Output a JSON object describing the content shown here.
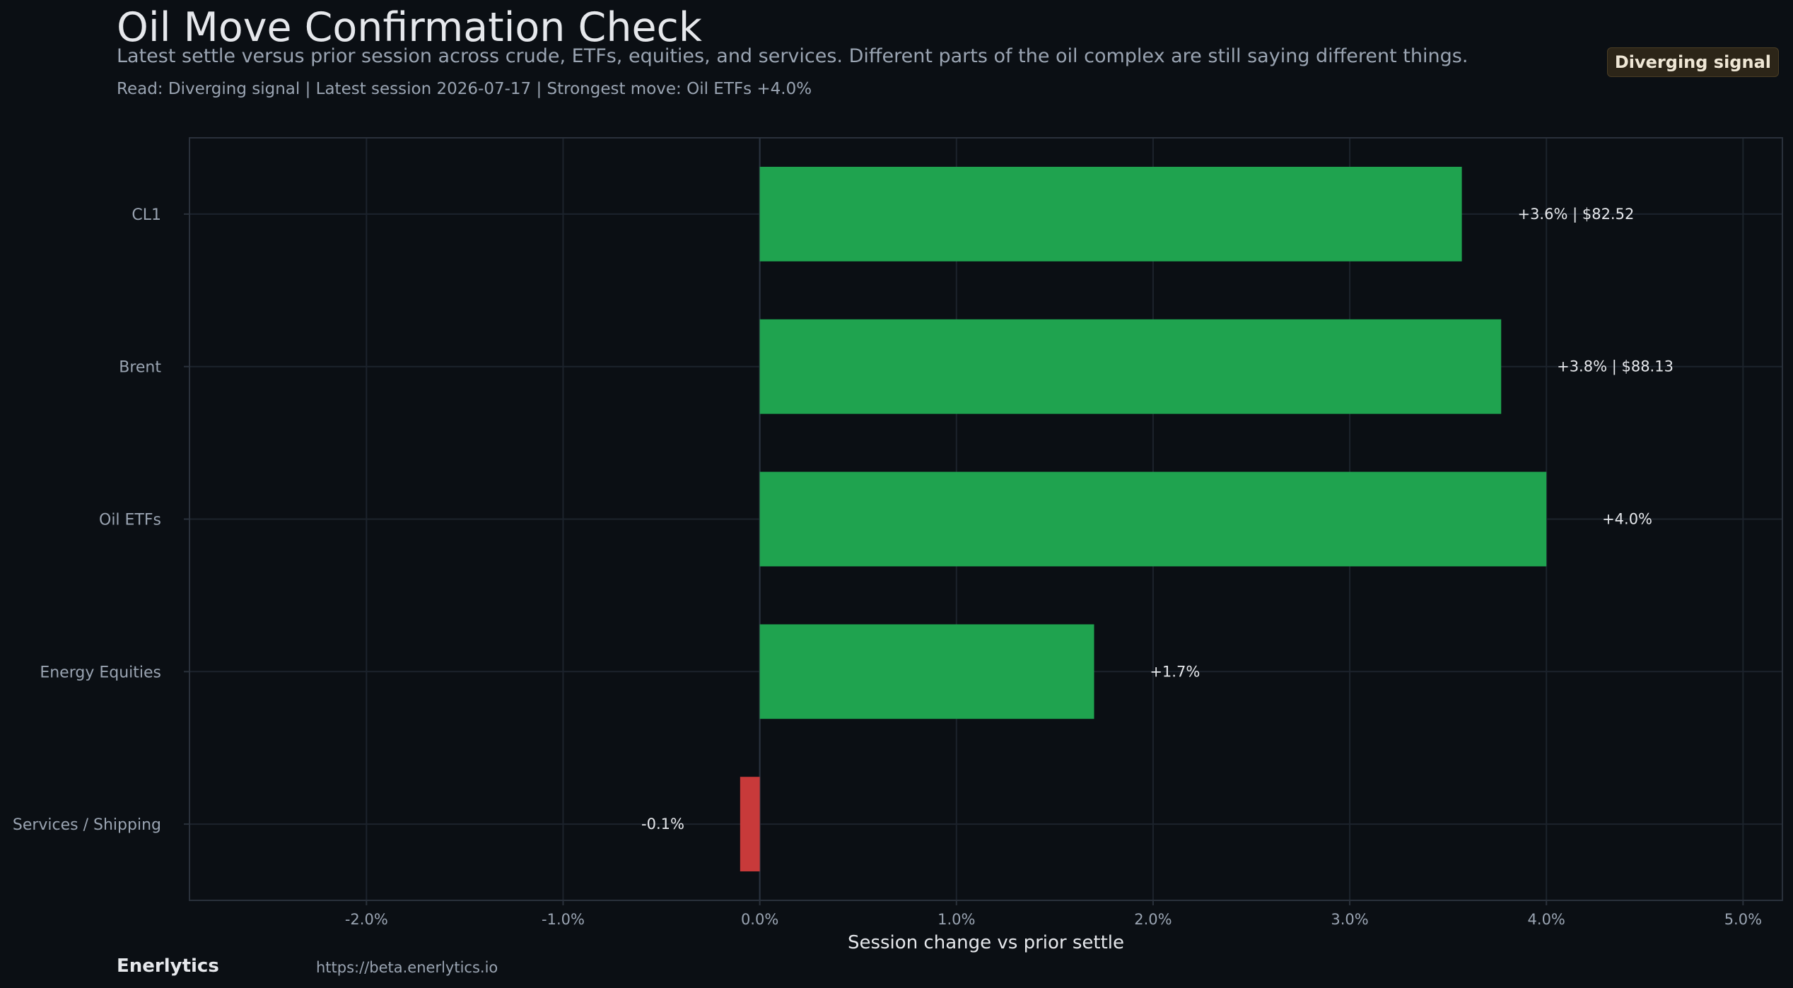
{
  "header": {
    "title": "Oil Move Confirmation Check",
    "subtitle": "Latest settle versus prior session across crude, ETFs, equities, and services. Different parts of the oil complex are still saying different things.",
    "meta": "Read: Diverging signal  |  Latest session 2026-07-17  |  Strongest move: Oil ETFs +4.0%",
    "badge": "Diverging signal"
  },
  "footer": {
    "brand": "Enerlytics",
    "url": "https://beta.enerlytics.io"
  },
  "chart_data": {
    "type": "bar",
    "orientation": "horizontal",
    "categories": [
      "CL1",
      "Brent",
      "Oil ETFs",
      "Energy Equities",
      "Services / Shipping"
    ],
    "values": [
      3.57,
      3.77,
      4.0,
      1.7,
      -0.1
    ],
    "data_labels": [
      "+3.6% | $82.52",
      "+3.8% | $88.13",
      "+4.0%",
      "+1.7%",
      "-0.1%"
    ],
    "xlabel": "Session change vs prior settle",
    "ylabel": "",
    "xlim": [
      -2.9,
      5.2
    ],
    "xticks": [
      -2,
      -1,
      0,
      1,
      2,
      3,
      4,
      5
    ],
    "xtick_labels": [
      "-2.0%",
      "-1.0%",
      "0.0%",
      "1.0%",
      "2.0%",
      "3.0%",
      "4.0%",
      "5.0%"
    ],
    "grid": true,
    "legend": "none",
    "colors": {
      "positive": "#1fa34f",
      "negative": "#c83a3a",
      "grid": "#1c232c",
      "axis_frame": "#2a313b",
      "zero_line": "#2a3340",
      "tick_label": "#9aa4b2",
      "data_label": "#e6e8ec",
      "axis_label": "#e6e8ec"
    }
  }
}
